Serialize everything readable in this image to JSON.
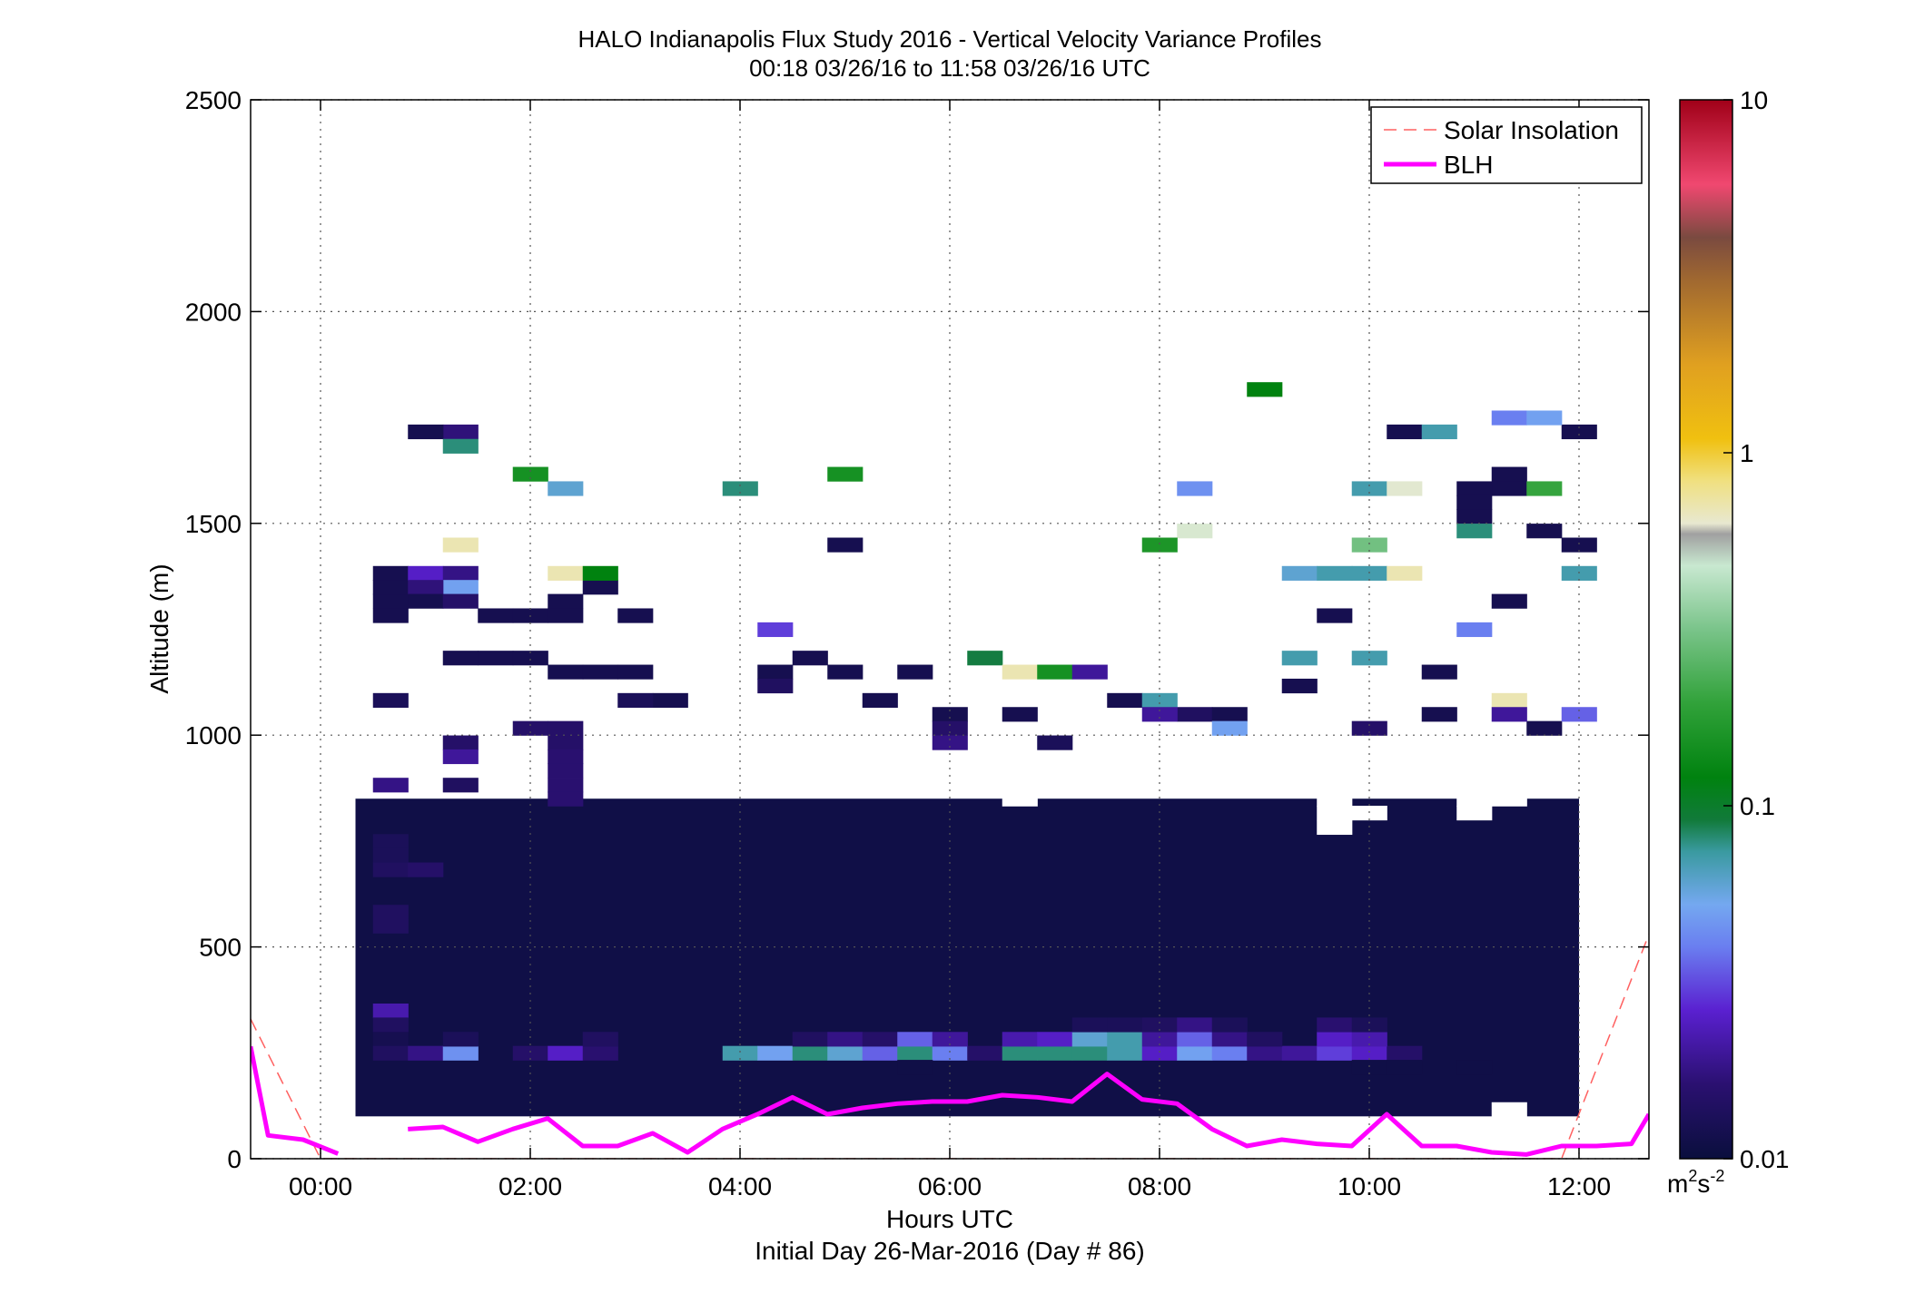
{
  "chart_data": {
    "type": "heatmap",
    "title": "HALO Indianapolis Flux Study 2016 - Vertical Velocity Variance Profiles",
    "subtitle": "00:18 03/26/16 to 11:58 03/26/16  UTC",
    "xlabel": "Hours UTC",
    "xlabel2": "Initial Day 26-Mar-2016 (Day # 86)",
    "ylabel": "Altitude (m)",
    "xlim": [
      -0.6667,
      12.6667
    ],
    "ylim": [
      0,
      2500
    ],
    "x_ticks": [
      0,
      2,
      4,
      6,
      8,
      10,
      12
    ],
    "x_tick_labels": [
      "00:00",
      "02:00",
      "04:00",
      "06:00",
      "08:00",
      "10:00",
      "12:00"
    ],
    "y_ticks": [
      0,
      500,
      1000,
      1500,
      2000,
      2500
    ],
    "y_tick_labels": [
      "0",
      "500",
      "1000",
      "1500",
      "2000",
      "2500"
    ],
    "grid": true,
    "legend": {
      "placement": "top-right",
      "entries": [
        {
          "label": "Solar Insolation",
          "color": "#ff6060",
          "style": "dashed"
        },
        {
          "label": "BLH",
          "color": "#ff00ff",
          "style": "solid"
        }
      ]
    },
    "colorbar": {
      "scale": "log",
      "range": [
        0.01,
        10
      ],
      "tick_values": [
        0.01,
        0.1,
        1,
        10
      ],
      "tick_labels": [
        "0.01",
        "0.1",
        "1",
        "10"
      ],
      "unit": "m",
      "unit_exp1": "2",
      "unit_mid": "s",
      "unit_exp2": "-2"
    },
    "heatmap": {
      "x_start": 0.3333,
      "dx": 0.3333,
      "y_start": 100,
      "dy": 33.3333,
      "background_value": 0.011,
      "background_range": {
        "x_from": 0.3333,
        "x_to": 12,
        "y_from": 100,
        "y_to": 850
      },
      "cells": [
        [
          0.5,
          1300,
          0.012
        ],
        [
          0.5,
          1333,
          0.012
        ],
        [
          0.5,
          1366,
          0.012
        ],
        [
          0.8333,
          1366,
          0.025
        ],
        [
          1.1667,
          1366,
          0.018
        ],
        [
          1.1667,
          1333,
          0.05
        ],
        [
          0.8333,
          1333,
          0.017
        ],
        [
          0.5,
          1266,
          0.012
        ],
        [
          0.8333,
          1300,
          0.012
        ],
        [
          1.1667,
          1300,
          0.015
        ],
        [
          1.5,
          1266,
          0.012
        ],
        [
          1.8333,
          1266,
          0.012
        ],
        [
          2.1667,
          1266,
          0.012
        ],
        [
          2.1667,
          1300,
          0.012
        ],
        [
          2.8333,
          1266,
          0.012
        ],
        [
          2.5,
          1333,
          0.012
        ],
        [
          0.5,
          1066,
          0.013
        ],
        [
          1.1667,
          1166,
          0.012
        ],
        [
          1.5,
          1166,
          0.012
        ],
        [
          1.8333,
          1166,
          0.012
        ],
        [
          2.1667,
          1133,
          0.012
        ],
        [
          2.5,
          1133,
          0.012
        ],
        [
          2.8333,
          1133,
          0.012
        ],
        [
          3.1667,
          1066,
          0.012
        ],
        [
          2.8333,
          1066,
          0.013
        ],
        [
          4.1667,
          1133,
          0.012
        ],
        [
          4.5,
          1166,
          0.012
        ],
        [
          4.8333,
          1133,
          0.012
        ],
        [
          5.5,
          1133,
          0.012
        ],
        [
          7.5,
          1066,
          0.012
        ],
        [
          4.1667,
          1100,
          0.014
        ],
        [
          5.1667,
          1066,
          0.012
        ],
        [
          5.8333,
          1033,
          0.012
        ],
        [
          6.5,
          1033,
          0.012
        ],
        [
          8.1667,
          1033,
          0.014
        ],
        [
          8.5,
          1033,
          0.012
        ],
        [
          10.5,
          1033,
          0.012
        ],
        [
          11.1667,
          1300,
          0.012
        ],
        [
          10.5,
          1133,
          0.012
        ],
        [
          11.5,
          1000,
          0.012
        ],
        [
          9.1667,
          1100,
          0.012
        ],
        [
          9.5,
          1266,
          0.012
        ],
        [
          10.1667,
          1700,
          0.012
        ],
        [
          11.8333,
          1700,
          0.012
        ],
        [
          1.1667,
          1700,
          0.017
        ],
        [
          0.8333,
          1700,
          0.012
        ],
        [
          11.1667,
          1600,
          0.012
        ],
        [
          11.1667,
          1566,
          0.012
        ],
        [
          10.8333,
          1566,
          0.012
        ],
        [
          10.8333,
          1533,
          0.012
        ],
        [
          10.8333,
          1500,
          0.012
        ],
        [
          11.5,
          1466,
          0.012
        ],
        [
          11.8333,
          1433,
          0.012
        ],
        [
          4.8333,
          1433,
          0.012
        ],
        [
          1.1667,
          1666,
          0.08
        ],
        [
          1.8333,
          1600,
          0.15
        ],
        [
          2.1667,
          1566,
          0.06
        ],
        [
          3.8333,
          1566,
          0.08
        ],
        [
          4.8333,
          1600,
          0.15
        ],
        [
          8.8333,
          1800,
          0.12
        ],
        [
          11.1667,
          1733,
          0.04
        ],
        [
          11.5,
          1733,
          0.05
        ],
        [
          10.5,
          1700,
          0.07
        ],
        [
          9.8333,
          1566,
          0.07
        ],
        [
          10.1667,
          1566,
          0.6
        ],
        [
          8.1667,
          1566,
          0.045
        ],
        [
          11.5,
          1566,
          0.2
        ],
        [
          10.8333,
          1466,
          0.08
        ],
        [
          8.1667,
          1466,
          0.55
        ],
        [
          7.8333,
          1433,
          0.16
        ],
        [
          9.8333,
          1433,
          0.3
        ],
        [
          1.1667,
          1433,
          0.7
        ],
        [
          2.1667,
          1366,
          0.7
        ],
        [
          2.5,
          1366,
          0.12
        ],
        [
          9.1667,
          1366,
          0.06
        ],
        [
          9.5,
          1366,
          0.07
        ],
        [
          9.8333,
          1366,
          0.07
        ],
        [
          10.1667,
          1366,
          0.7
        ],
        [
          11.8333,
          1366,
          0.07
        ],
        [
          4.1667,
          1233,
          0.03
        ],
        [
          10.8333,
          1233,
          0.04
        ],
        [
          6.1667,
          1166,
          0.09
        ],
        [
          6.5,
          1133,
          0.7
        ],
        [
          6.8333,
          1133,
          0.15
        ],
        [
          7.1667,
          1133,
          0.02
        ],
        [
          9.1667,
          1166,
          0.07
        ],
        [
          9.8333,
          1166,
          0.07
        ],
        [
          7.8333,
          1066,
          0.07
        ],
        [
          11.1667,
          1066,
          0.7
        ],
        [
          11.1667,
          1033,
          0.02
        ],
        [
          11.8333,
          1033,
          0.035
        ],
        [
          7.8333,
          1033,
          0.02
        ],
        [
          8.5,
          1000,
          0.05
        ],
        [
          1.8333,
          1000,
          0.015
        ],
        [
          2.1667,
          1000,
          0.015
        ],
        [
          5.8333,
          1000,
          0.015
        ],
        [
          9.8333,
          1000,
          0.015
        ],
        [
          1.1667,
          966,
          0.015
        ],
        [
          1.1667,
          933,
          0.02
        ],
        [
          2.1667,
          966,
          0.015
        ],
        [
          2.1667,
          933,
          0.016
        ],
        [
          5.8333,
          966,
          0.018
        ],
        [
          2.1667,
          900,
          0.016
        ],
        [
          2.1667,
          866,
          0.016
        ],
        [
          0.5,
          866,
          0.018
        ],
        [
          1.1667,
          866,
          0.014
        ],
        [
          2.1667,
          833,
          0.016
        ],
        [
          6.8333,
          966,
          0.013
        ],
        [
          0.5,
          733,
          0.013
        ],
        [
          0.5,
          700,
          0.013
        ],
        [
          0.5,
          666,
          0.014
        ],
        [
          0.8333,
          666,
          0.015
        ],
        [
          0.5,
          566,
          0.014
        ],
        [
          0.5,
          533,
          0.014
        ],
        [
          0.5,
          333,
          0.022
        ],
        [
          0.5,
          300,
          0.014
        ],
        [
          0.5,
          266,
          0.012
        ],
        [
          0.5,
          233,
          0.014
        ],
        [
          0.8333,
          233,
          0.018
        ],
        [
          1.1667,
          233,
          0.045
        ],
        [
          1.1667,
          266,
          0.013
        ],
        [
          1.8333,
          233,
          0.015
        ],
        [
          2.1667,
          233,
          0.025
        ],
        [
          2.5,
          233,
          0.016
        ],
        [
          2.5,
          266,
          0.014
        ],
        [
          3.8333,
          233,
          0.07
        ],
        [
          4.1667,
          233,
          0.05
        ],
        [
          4.5,
          233,
          0.08
        ],
        [
          4.8333,
          233,
          0.06
        ],
        [
          5.1667,
          233,
          0.035
        ],
        [
          5.5,
          233,
          0.08
        ],
        [
          5.8333,
          233,
          0.04
        ],
        [
          6.1667,
          233,
          0.015
        ],
        [
          6.5,
          233,
          0.08
        ],
        [
          6.8333,
          233,
          0.08
        ],
        [
          7.1667,
          233,
          0.08
        ],
        [
          7.5,
          233,
          0.07
        ],
        [
          7.8333,
          233,
          0.025
        ],
        [
          8.1667,
          233,
          0.05
        ],
        [
          8.5,
          233,
          0.04
        ],
        [
          8.8333,
          233,
          0.018
        ],
        [
          9.1667,
          233,
          0.02
        ],
        [
          9.5,
          233,
          0.03
        ],
        [
          9.8333,
          233,
          0.025
        ],
        [
          10.1667,
          233,
          0.015
        ],
        [
          4.5,
          266,
          0.014
        ],
        [
          4.8333,
          266,
          0.018
        ],
        [
          5.1667,
          266,
          0.015
        ],
        [
          5.5,
          266,
          0.035
        ],
        [
          5.8333,
          266,
          0.02
        ],
        [
          6.5,
          266,
          0.022
        ],
        [
          6.8333,
          266,
          0.025
        ],
        [
          7.1667,
          266,
          0.06
        ],
        [
          7.5,
          266,
          0.07
        ],
        [
          7.8333,
          266,
          0.02
        ],
        [
          8.1667,
          266,
          0.035
        ],
        [
          8.5,
          266,
          0.018
        ],
        [
          8.8333,
          266,
          0.014
        ],
        [
          9.5,
          266,
          0.025
        ],
        [
          9.8333,
          266,
          0.022
        ],
        [
          7.1667,
          300,
          0.013
        ],
        [
          7.5,
          300,
          0.013
        ],
        [
          7.8333,
          300,
          0.014
        ],
        [
          8.1667,
          300,
          0.018
        ],
        [
          8.5,
          300,
          0.013
        ],
        [
          9.5,
          300,
          0.016
        ],
        [
          9.8333,
          300,
          0.013
        ],
        [
          5.5,
          200,
          0.011
        ],
        [
          9.8333,
          200,
          0.011
        ],
        [
          10.1667,
          200,
          0.011
        ],
        [
          10.8333,
          200,
          0.011
        ],
        [
          11.1667,
          100,
          null
        ],
        [
          9.5,
          766,
          null
        ],
        [
          9.8333,
          800,
          null
        ],
        [
          10.8333,
          800,
          null
        ],
        [
          11.1667,
          833,
          null
        ],
        [
          11.5,
          866,
          null
        ],
        [
          11.1667,
          866,
          null
        ],
        [
          9.5,
          833,
          null
        ],
        [
          9.5,
          800,
          null
        ],
        [
          6.5,
          833,
          null
        ],
        [
          10.8333,
          833,
          null
        ],
        [
          10.8333,
          866,
          null
        ]
      ]
    },
    "blh_series": {
      "name": "BLH",
      "x": [
        -0.6667,
        -0.5,
        -0.1667,
        0.1667,
        0.5,
        0.8333,
        1.1667,
        1.5,
        1.8333,
        2.1667,
        2.5,
        2.8333,
        3.1667,
        3.5,
        3.8333,
        4.1667,
        4.5,
        4.8333,
        5.1667,
        5.5,
        5.8333,
        6.1667,
        6.5,
        6.8333,
        7.1667,
        7.5,
        7.8333,
        8.1667,
        8.5,
        8.8333,
        9.1667,
        9.5,
        9.8333,
        10.1667,
        10.5,
        10.8333,
        11.1667,
        11.5,
        11.8333,
        12.1667,
        12.5,
        12.6667
      ],
      "y": [
        265,
        55,
        45,
        12,
        null,
        70,
        75,
        40,
        70,
        95,
        30,
        30,
        60,
        15,
        70,
        105,
        145,
        105,
        120,
        130,
        135,
        135,
        150,
        145,
        135,
        200,
        140,
        130,
        70,
        30,
        45,
        35,
        30,
        105,
        30,
        30,
        15,
        10,
        30,
        30,
        35,
        105
      ]
    },
    "solar_series": {
      "name": "Solar Insolation",
      "x": [
        -0.6667,
        0.0,
        11.8333,
        12.6667
      ],
      "y": [
        330,
        0,
        0,
        530
      ]
    }
  }
}
